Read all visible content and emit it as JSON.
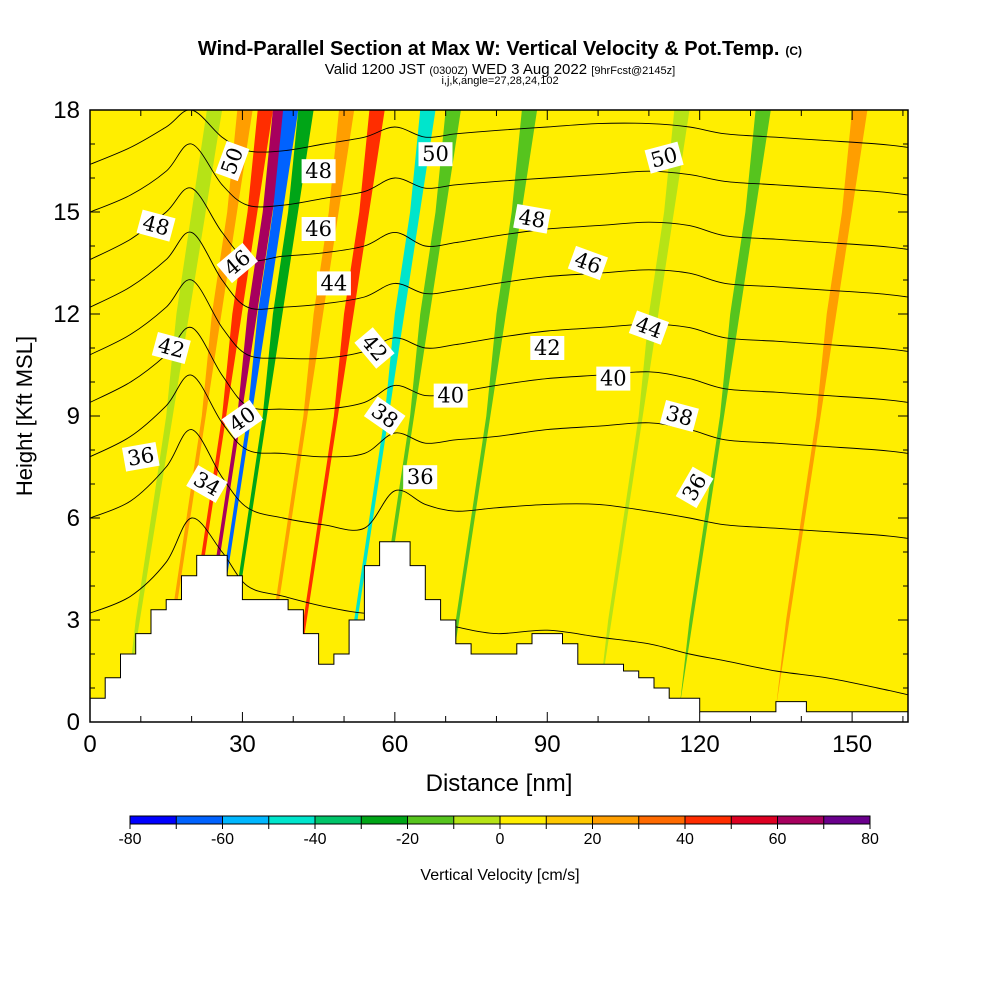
{
  "header": {
    "title": "Wind-Parallel Section at Max W: Vertical Velocity & Pot.Temp.",
    "copyright": "(C)",
    "valid_prefix": "Valid 1200 JST",
    "valid_utc": "(0300Z)",
    "valid_date": "WED 3 Aug 2022",
    "forecast": "[9hrFcst@2145z]",
    "indices": "i,j,k,angle=27,28,24,102"
  },
  "chart_data": {
    "type": "heatmap",
    "xlabel": "Distance [nm]",
    "ylabel": "Height [Kft MSL]",
    "xlim": [
      0,
      161
    ],
    "ylim": [
      0,
      18
    ],
    "x_ticks": [
      0,
      30,
      60,
      90,
      120,
      150
    ],
    "y_ticks": [
      0,
      3,
      6,
      9,
      12,
      15,
      18
    ],
    "colorbar": {
      "label": "Vertical Velocity [cm/s]",
      "levels": [
        -80,
        -70,
        -60,
        -50,
        -40,
        -30,
        -20,
        -10,
        0,
        10,
        20,
        30,
        40,
        50,
        60,
        70,
        80
      ],
      "tick_labels": [
        -80,
        -60,
        -40,
        -20,
        0,
        20,
        40,
        60,
        80
      ],
      "colors": [
        "#0000ff",
        "#0062ff",
        "#00b7ff",
        "#00e5cc",
        "#00c469",
        "#00a517",
        "#56c41e",
        "#b6e316",
        "#ffee00",
        "#ffc800",
        "#ff9e00",
        "#ff6a00",
        "#ff2d00",
        "#dd0022",
        "#a7005e",
        "#6a008c"
      ]
    },
    "wave_bands": [
      {
        "x": [
          7,
          9,
          12,
          15,
          17,
          20,
          23,
          26
        ],
        "y": [
          0.4,
          3,
          6,
          9,
          12,
          15,
          18,
          18
        ],
        "value": -10
      },
      {
        "x": [
          14,
          16,
          19,
          22,
          24,
          27,
          29,
          32
        ],
        "y": [
          0.4,
          3,
          6,
          9,
          12,
          15,
          18,
          18
        ],
        "value": 25
      },
      {
        "x": [
          18,
          20,
          23,
          26,
          28,
          31,
          33,
          36
        ],
        "y": [
          0.4,
          3,
          6,
          9,
          12,
          15,
          18,
          18
        ],
        "value": 45
      },
      {
        "x": [
          21,
          23,
          26,
          29,
          31,
          34,
          36,
          39
        ],
        "y": [
          0.4,
          3,
          6,
          9,
          12,
          15,
          18,
          18
        ],
        "value": 65
      },
      {
        "x": [
          23,
          25,
          28,
          31,
          33,
          36,
          38,
          41
        ],
        "y": [
          0.4,
          3,
          6,
          9,
          12,
          15,
          18,
          18
        ],
        "value": -65
      },
      {
        "x": [
          26,
          28,
          31,
          34,
          36,
          39,
          41,
          44
        ],
        "y": [
          0.4,
          3,
          6,
          9,
          12,
          15,
          18,
          18
        ],
        "value": -30
      },
      {
        "x": [
          34,
          36,
          39,
          42,
          44,
          47,
          49,
          52
        ],
        "y": [
          0.4,
          3,
          6,
          9,
          12,
          15,
          18,
          18
        ],
        "value": 25
      },
      {
        "x": [
          40,
          42,
          45,
          48,
          50,
          53,
          55,
          58
        ],
        "y": [
          0.4,
          3,
          6,
          9,
          12,
          15,
          18,
          18
        ],
        "value": 45
      },
      {
        "x": [
          50,
          52,
          55,
          58,
          60,
          63,
          65,
          68
        ],
        "y": [
          0.4,
          3,
          6,
          9,
          12,
          15,
          18,
          18
        ],
        "value": -50
      },
      {
        "x": [
          55,
          57,
          60,
          63,
          65,
          68,
          70,
          73
        ],
        "y": [
          0.4,
          3,
          6,
          9,
          12,
          15,
          18,
          18
        ],
        "value": -20
      },
      {
        "x": [
          70,
          72,
          75,
          78,
          80,
          83,
          85,
          88
        ],
        "y": [
          0.4,
          3,
          6,
          9,
          12,
          15,
          18,
          18
        ],
        "value": -15
      },
      {
        "x": [
          100,
          102,
          105,
          108,
          110,
          113,
          115,
          118
        ],
        "y": [
          0.4,
          3,
          6,
          9,
          12,
          15,
          18,
          18
        ],
        "value": -10
      },
      {
        "x": [
          116,
          118,
          121,
          124,
          126,
          129,
          131,
          134
        ],
        "y": [
          0.4,
          3,
          6,
          9,
          12,
          15,
          18,
          18
        ],
        "value": -20
      },
      {
        "x": [
          135,
          137,
          140,
          143,
          145,
          148,
          150,
          153
        ],
        "y": [
          0.4,
          3,
          6,
          9,
          12,
          15,
          18,
          18
        ],
        "value": 20
      }
    ],
    "terrain": {
      "x": [
        0,
        3,
        6,
        9,
        12,
        15,
        18,
        21,
        24,
        27,
        30,
        33,
        36,
        39,
        42,
        45,
        48,
        51,
        54,
        57,
        60,
        63,
        66,
        69,
        72,
        75,
        78,
        81,
        84,
        87,
        90,
        93,
        96,
        99,
        102,
        105,
        108,
        111,
        114,
        117,
        120,
        123,
        126,
        129,
        132,
        135,
        138,
        141,
        144,
        147,
        150,
        153,
        156,
        159,
        161
      ],
      "y": [
        0.7,
        1.3,
        2.0,
        2.6,
        3.3,
        3.6,
        4.3,
        4.9,
        4.9,
        4.3,
        3.6,
        3.6,
        3.6,
        3.3,
        2.6,
        1.7,
        2.0,
        3.0,
        4.6,
        5.3,
        5.3,
        4.6,
        3.6,
        3.0,
        2.3,
        2.0,
        2.0,
        2.0,
        2.3,
        2.6,
        2.6,
        2.3,
        1.7,
        1.7,
        1.7,
        1.5,
        1.3,
        1.0,
        0.7,
        0.7,
        0.3,
        0.3,
        0.3,
        0.3,
        0.3,
        0.6,
        0.6,
        0.3,
        0.3,
        0.3,
        0.3,
        0.3,
        0.3,
        0.3,
        0.3
      ]
    },
    "theta_isentropes": [
      {
        "level": 34,
        "x": [
          0,
          8,
          15,
          20,
          26,
          31,
          38,
          46,
          54,
          60,
          66,
          72,
          80,
          90,
          100,
          110,
          118,
          125,
          135,
          145,
          155,
          161
        ],
        "y": [
          3.2,
          3.7,
          4.7,
          6.0,
          5.0,
          4.0,
          3.7,
          3.4,
          3.2,
          3.3,
          3.0,
          2.8,
          2.6,
          2.7,
          2.5,
          2.3,
          2.0,
          1.8,
          1.5,
          1.3,
          1.0,
          0.8
        ]
      },
      {
        "level": 36,
        "x": [
          0,
          8,
          15,
          20,
          26,
          31,
          38,
          46,
          54,
          60,
          66,
          72,
          80,
          90,
          100,
          110,
          118,
          125,
          135,
          145,
          155,
          161
        ],
        "y": [
          6.0,
          6.5,
          7.5,
          8.6,
          7.2,
          6.3,
          6.0,
          5.8,
          5.7,
          6.8,
          6.4,
          6.2,
          6.3,
          6.4,
          6.4,
          6.2,
          6.0,
          5.8,
          5.7,
          5.6,
          5.5,
          5.4
        ]
      },
      {
        "level": 38,
        "x": [
          0,
          8,
          15,
          20,
          26,
          31,
          38,
          46,
          54,
          60,
          66,
          72,
          80,
          90,
          100,
          110,
          118,
          125,
          135,
          145,
          155,
          161
        ],
        "y": [
          7.8,
          8.4,
          9.3,
          10.2,
          8.8,
          8.0,
          7.9,
          7.8,
          7.9,
          8.5,
          8.2,
          8.3,
          8.4,
          8.6,
          8.7,
          8.8,
          8.6,
          8.3,
          8.2,
          8.1,
          8.0,
          7.9
        ]
      },
      {
        "level": 40,
        "x": [
          0,
          8,
          15,
          20,
          26,
          31,
          38,
          46,
          54,
          60,
          66,
          72,
          80,
          90,
          100,
          110,
          118,
          125,
          135,
          145,
          155,
          161
        ],
        "y": [
          9.4,
          10.0,
          10.8,
          11.6,
          10.2,
          9.3,
          9.2,
          9.2,
          9.4,
          9.9,
          9.6,
          9.7,
          9.9,
          10.1,
          10.2,
          10.3,
          10.1,
          9.8,
          9.7,
          9.6,
          9.5,
          9.4
        ]
      },
      {
        "level": 42,
        "x": [
          0,
          8,
          15,
          20,
          26,
          31,
          38,
          46,
          54,
          60,
          66,
          72,
          80,
          90,
          100,
          110,
          118,
          125,
          135,
          145,
          155,
          161
        ],
        "y": [
          10.8,
          11.4,
          12.2,
          13.0,
          11.6,
          10.8,
          10.7,
          10.7,
          10.9,
          11.3,
          11.0,
          11.1,
          11.3,
          11.5,
          11.6,
          11.7,
          11.6,
          11.3,
          11.2,
          11.1,
          11.0,
          10.9
        ]
      },
      {
        "level": 44,
        "x": [
          0,
          8,
          15,
          20,
          26,
          31,
          38,
          46,
          54,
          60,
          66,
          72,
          80,
          90,
          100,
          110,
          118,
          125,
          135,
          145,
          155,
          161
        ],
        "y": [
          12.2,
          12.8,
          13.6,
          14.4,
          13.0,
          12.2,
          12.2,
          12.3,
          12.5,
          12.9,
          12.6,
          12.7,
          12.9,
          13.1,
          13.2,
          13.3,
          13.2,
          12.9,
          12.8,
          12.7,
          12.6,
          12.5
        ]
      },
      {
        "level": 46,
        "x": [
          0,
          8,
          15,
          20,
          26,
          31,
          38,
          46,
          54,
          60,
          66,
          72,
          80,
          90,
          100,
          110,
          118,
          125,
          135,
          145,
          155,
          161
        ],
        "y": [
          13.6,
          14.2,
          15.0,
          15.7,
          14.4,
          13.6,
          13.7,
          13.8,
          14.0,
          14.4,
          14.0,
          14.1,
          14.3,
          14.5,
          14.6,
          14.7,
          14.6,
          14.3,
          14.2,
          14.1,
          14.0,
          13.9
        ]
      },
      {
        "level": 48,
        "x": [
          0,
          8,
          15,
          20,
          26,
          31,
          38,
          46,
          54,
          60,
          66,
          72,
          80,
          90,
          100,
          110,
          118,
          125,
          135,
          145,
          155,
          161
        ],
        "y": [
          15.0,
          15.5,
          16.2,
          17.0,
          15.8,
          15.2,
          15.2,
          15.4,
          15.6,
          16.0,
          15.7,
          15.8,
          15.9,
          16.0,
          16.1,
          16.2,
          16.1,
          15.9,
          15.8,
          15.7,
          15.6,
          15.5
        ]
      },
      {
        "level": 50,
        "x": [
          0,
          8,
          15,
          20,
          26,
          31,
          38,
          46,
          54,
          60,
          66,
          72,
          80,
          90,
          100,
          110,
          118,
          125,
          135,
          145,
          155,
          161
        ],
        "y": [
          16.4,
          16.9,
          17.5,
          18.0,
          17.2,
          16.8,
          16.8,
          17.0,
          17.2,
          17.5,
          17.2,
          17.3,
          17.4,
          17.5,
          17.6,
          17.6,
          17.5,
          17.3,
          17.2,
          17.1,
          17.0,
          16.9
        ]
      }
    ],
    "contour_labels": [
      {
        "text": "34",
        "x": 23,
        "y": 7.0,
        "angle": 30
      },
      {
        "text": "36",
        "x": 10,
        "y": 7.8,
        "angle": -10
      },
      {
        "text": "40",
        "x": 30,
        "y": 8.9,
        "angle": -35
      },
      {
        "text": "42",
        "x": 16,
        "y": 11.0,
        "angle": 15
      },
      {
        "text": "46",
        "x": 29,
        "y": 13.5,
        "angle": -40
      },
      {
        "text": "48",
        "x": 13,
        "y": 14.6,
        "angle": 15
      },
      {
        "text": "50",
        "x": 28,
        "y": 16.5,
        "angle": -70
      },
      {
        "text": "48",
        "x": 45,
        "y": 16.2,
        "angle": 0
      },
      {
        "text": "46",
        "x": 45,
        "y": 14.5,
        "angle": 0
      },
      {
        "text": "44",
        "x": 48,
        "y": 12.9,
        "angle": 0
      },
      {
        "text": "42",
        "x": 56,
        "y": 11.0,
        "angle": 50
      },
      {
        "text": "38",
        "x": 58,
        "y": 9.0,
        "angle": 35
      },
      {
        "text": "40",
        "x": 71,
        "y": 9.6,
        "angle": 0
      },
      {
        "text": "36",
        "x": 65,
        "y": 7.2,
        "angle": 0
      },
      {
        "text": "50",
        "x": 68,
        "y": 16.7,
        "angle": 0
      },
      {
        "text": "48",
        "x": 87,
        "y": 14.8,
        "angle": 10
      },
      {
        "text": "46",
        "x": 98,
        "y": 13.5,
        "angle": 20
      },
      {
        "text": "42",
        "x": 90,
        "y": 11.0,
        "angle": 0
      },
      {
        "text": "40",
        "x": 103,
        "y": 10.1,
        "angle": 0
      },
      {
        "text": "44",
        "x": 110,
        "y": 11.6,
        "angle": 20
      },
      {
        "text": "38",
        "x": 116,
        "y": 9.0,
        "angle": 15
      },
      {
        "text": "36",
        "x": 119,
        "y": 6.9,
        "angle": -60
      },
      {
        "text": "50",
        "x": 113,
        "y": 16.6,
        "angle": -15
      }
    ]
  }
}
